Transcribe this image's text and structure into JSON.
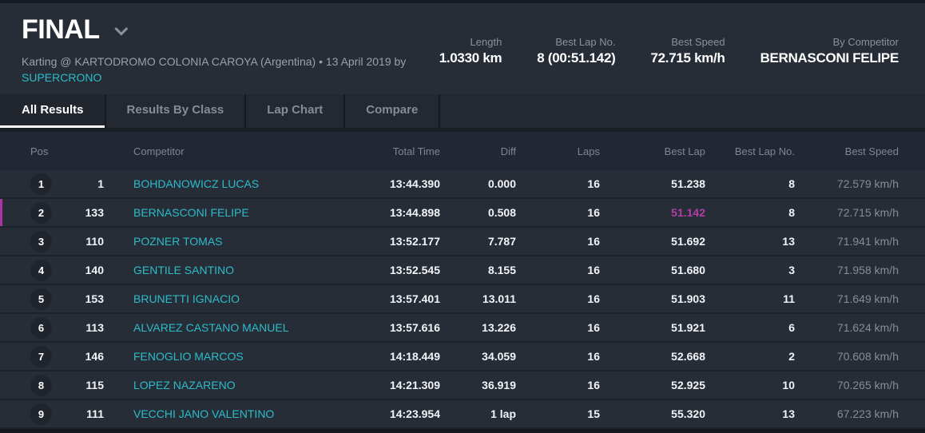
{
  "header": {
    "title": "FINAL",
    "subtitle": "Karting @ KARTODROMO COLONIA CAROYA (Argentina) • 13 April 2019 by",
    "organizer": "SUPERCRONO",
    "stats": [
      {
        "label": "Length",
        "value": "1.0330 km"
      },
      {
        "label": "Best Lap No.",
        "value": "8 (00:51.142)"
      },
      {
        "label": "Best Speed",
        "value": "72.715 km/h"
      },
      {
        "label": "By Competitor",
        "value": "BERNASCONI FELIPE"
      }
    ]
  },
  "tabs": [
    {
      "label": "All Results",
      "active": true
    },
    {
      "label": "Results By Class",
      "active": false
    },
    {
      "label": "Lap Chart",
      "active": false
    },
    {
      "label": "Compare",
      "active": false
    }
  ],
  "table": {
    "columns": [
      "Pos",
      "Competitor",
      "Total Time",
      "Diff",
      "Laps",
      "Best Lap",
      "Best Lap No.",
      "Best Speed"
    ],
    "rows": [
      {
        "pos": "1",
        "no": "1",
        "competitor": "BOHDANOWICZ LUCAS",
        "total_time": "13:44.390",
        "diff": "0.000",
        "laps": "16",
        "best_lap": "51.238",
        "best_lap_no": "8",
        "best_speed": "72.579 km/h",
        "highlight": false,
        "best_lap_highlight": false
      },
      {
        "pos": "2",
        "no": "133",
        "competitor": "BERNASCONI FELIPE",
        "total_time": "13:44.898",
        "diff": "0.508",
        "laps": "16",
        "best_lap": "51.142",
        "best_lap_no": "8",
        "best_speed": "72.715 km/h",
        "highlight": true,
        "best_lap_highlight": true
      },
      {
        "pos": "3",
        "no": "110",
        "competitor": "POZNER TOMAS",
        "total_time": "13:52.177",
        "diff": "7.787",
        "laps": "16",
        "best_lap": "51.692",
        "best_lap_no": "13",
        "best_speed": "71.941 km/h",
        "highlight": false,
        "best_lap_highlight": false
      },
      {
        "pos": "4",
        "no": "140",
        "competitor": "GENTILE SANTINO",
        "total_time": "13:52.545",
        "diff": "8.155",
        "laps": "16",
        "best_lap": "51.680",
        "best_lap_no": "3",
        "best_speed": "71.958 km/h",
        "highlight": false,
        "best_lap_highlight": false
      },
      {
        "pos": "5",
        "no": "153",
        "competitor": "BRUNETTI IGNACIO",
        "total_time": "13:57.401",
        "diff": "13.011",
        "laps": "16",
        "best_lap": "51.903",
        "best_lap_no": "11",
        "best_speed": "71.649 km/h",
        "highlight": false,
        "best_lap_highlight": false
      },
      {
        "pos": "6",
        "no": "113",
        "competitor": "ALVAREZ CASTANO MANUEL",
        "total_time": "13:57.616",
        "diff": "13.226",
        "laps": "16",
        "best_lap": "51.921",
        "best_lap_no": "6",
        "best_speed": "71.624 km/h",
        "highlight": false,
        "best_lap_highlight": false
      },
      {
        "pos": "7",
        "no": "146",
        "competitor": "FENOGLIO MARCOS",
        "total_time": "14:18.449",
        "diff": "34.059",
        "laps": "16",
        "best_lap": "52.668",
        "best_lap_no": "2",
        "best_speed": "70.608 km/h",
        "highlight": false,
        "best_lap_highlight": false
      },
      {
        "pos": "8",
        "no": "115",
        "competitor": "LOPEZ NAZARENO",
        "total_time": "14:21.309",
        "diff": "36.919",
        "laps": "16",
        "best_lap": "52.925",
        "best_lap_no": "10",
        "best_speed": "70.265 km/h",
        "highlight": false,
        "best_lap_highlight": false
      },
      {
        "pos": "9",
        "no": "111",
        "competitor": "VECCHI JANO VALENTINO",
        "total_time": "14:23.954",
        "diff": "1 lap",
        "laps": "15",
        "best_lap": "55.320",
        "best_lap_no": "13",
        "best_speed": "67.223 km/h",
        "highlight": false,
        "best_lap_highlight": false
      }
    ]
  },
  "colors": {
    "accent_cyan": "#2bbcca",
    "highlight_magenta": "#ad35a4",
    "best_lap_magenta": "#b23fa8",
    "background_dark": "#272d37",
    "tab_bar": "#232831",
    "table_header": "#222833"
  }
}
